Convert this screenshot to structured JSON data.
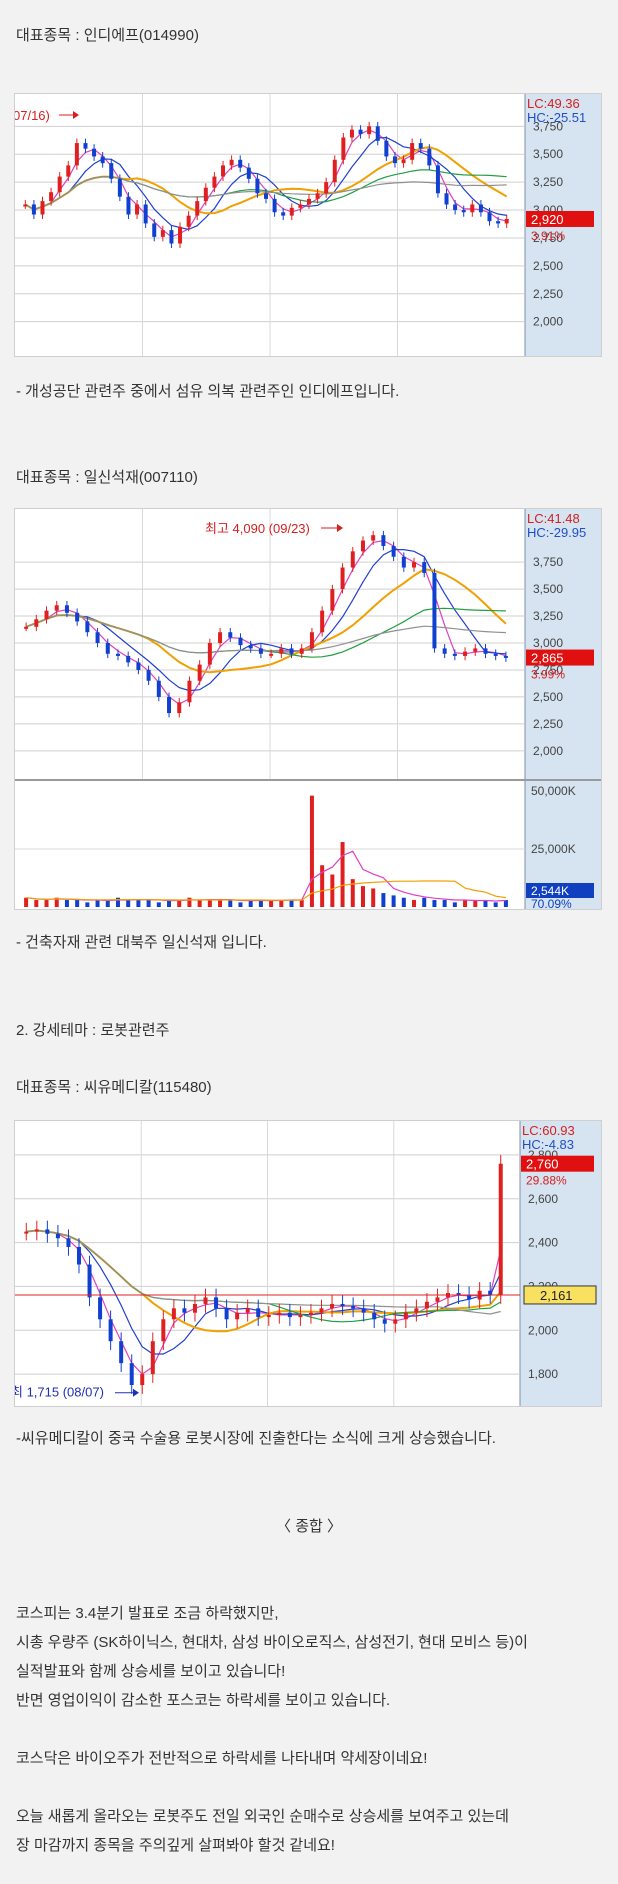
{
  "section1": {
    "title": "대표종목 : 인디에프(014990)",
    "caption": "- 개성공단 관련주 중에서 섬유 의복 관련주인 인디에프입니다."
  },
  "section2": {
    "title": "대표종목 : 일신석재(007110)",
    "caption": "- 건축자재 관련 대북주 일신석재 입니다."
  },
  "theme": {
    "heading": "2. 강세테마 : 로봇관련주"
  },
  "section3": {
    "title": "대표종목 : 씨유메디칼(115480)",
    "caption": "-씨유메디칼이 중국 수술용 로봇시장에 진출한다는 소식에 크게 상승했습니다."
  },
  "summary": {
    "heading": "〈 종합 〉",
    "lines": [
      "코스피는 3.4분기 발표로 조금 하락했지만,",
      "시총 우량주 (SK하이닉스, 현대차, 삼성 바이오로직스, 삼성전기, 현대 모비스 등)이",
      "실적발표와 함께 상승세를 보이고 있습니다!",
      "반면 영업이익이 감소한 포스코는 하락세를 보이고 있습니다.",
      "코스닥은 바이오주가 전반적으로 하락세를 나타내며 약세장이네요!",
      "오늘 새롭게 올라오는 로봇주도 전일 외국인 순매수로 상승세를 보여주고 있는데",
      "장 마감까지 종목을 주의깊게 살펴봐야 할것 같네요!"
    ]
  },
  "chart_data": [
    {
      "type": "line",
      "stock": "인디에프",
      "yticks": [
        2000,
        2250,
        2500,
        2750,
        3000,
        3250,
        3500,
        3750
      ],
      "ylim": [
        1800,
        3950
      ],
      "lc_label": "LC:49.36",
      "hc_label": "HC:-25.51",
      "current_price": "2,920",
      "change_pct": "3.91%",
      "annotation": "07/16)",
      "candles": [
        3050,
        2960,
        3080,
        3160,
        3300,
        3400,
        3600,
        3550,
        3480,
        3420,
        3280,
        3120,
        2960,
        3050,
        2880,
        2760,
        2820,
        2700,
        2850,
        2950,
        3080,
        3200,
        3300,
        3400,
        3450,
        3380,
        3280,
        3150,
        3100,
        2980,
        2950,
        3020,
        3050,
        3100,
        3150,
        3250,
        3450,
        3650,
        3720,
        3680,
        3750,
        3620,
        3480,
        3420,
        3450,
        3600,
        3550,
        3400,
        3150,
        3050,
        3000,
        2980,
        3050,
        2980,
        2900,
        2880,
        2920
      ]
    },
    {
      "type": "line",
      "stock": "일신석재",
      "yticks": [
        2000,
        2250,
        2500,
        2750,
        3000,
        3250,
        3500,
        3750
      ],
      "ylim": [
        1850,
        4150
      ],
      "lc_label": "LC:41.48",
      "hc_label": "HC:-29.95",
      "current_price": "2,865",
      "change_pct": "3.99%",
      "annotation": "최고 4,090 (09/23)",
      "volume_ticks": [
        "50,000K",
        "25,000K"
      ],
      "volume_label": "2,544K",
      "volume_pct": "70.09%",
      "candles": [
        3150,
        3220,
        3300,
        3350,
        3280,
        3200,
        3100,
        3000,
        2900,
        2880,
        2820,
        2750,
        2650,
        2500,
        2350,
        2450,
        2650,
        2800,
        3000,
        3100,
        3050,
        2980,
        2950,
        2900,
        2900,
        2950,
        2900,
        2950,
        3100,
        3300,
        3500,
        3700,
        3850,
        3950,
        4000,
        3900,
        3800,
        3700,
        3750,
        3650,
        2950,
        2900,
        2880,
        2920,
        2950,
        2900,
        2880,
        2865
      ],
      "volumes": [
        4,
        3,
        3,
        4,
        3,
        3,
        2,
        3,
        3,
        4,
        3,
        3,
        3,
        2,
        3,
        3,
        4,
        3,
        3,
        3,
        3,
        2,
        3,
        3,
        3,
        3,
        3,
        3,
        48,
        18,
        14,
        28,
        12,
        9,
        8,
        6,
        5,
        4,
        3,
        4,
        3,
        3,
        2,
        3,
        3,
        3,
        2,
        3
      ]
    },
    {
      "type": "line",
      "stock": "씨유메디칼",
      "yticks": [
        1800,
        2000,
        2200,
        2400,
        2600,
        2800
      ],
      "ylim": [
        1700,
        2900
      ],
      "lc_label": "LC:60.93",
      "hc_label": "HC:-4.83",
      "current_price": "2,760",
      "change_pct": "29.88%",
      "marker_price": "2,161",
      "annotation": "최 1,715 (08/07)",
      "candles": [
        2450,
        2460,
        2440,
        2420,
        2380,
        2300,
        2150,
        2050,
        1950,
        1850,
        1750,
        1800,
        1950,
        2050,
        2100,
        2080,
        2120,
        2150,
        2100,
        2050,
        2080,
        2100,
        2060,
        2070,
        2080,
        2060,
        2070,
        2080,
        2100,
        2120,
        2110,
        2100,
        2080,
        2050,
        2030,
        2050,
        2080,
        2100,
        2130,
        2150,
        2170,
        2160,
        2140,
        2180,
        2161,
        2760
      ]
    }
  ]
}
